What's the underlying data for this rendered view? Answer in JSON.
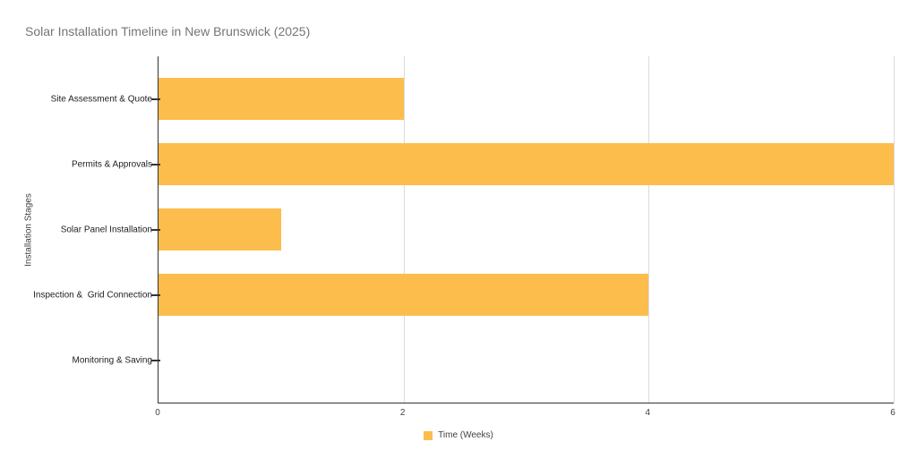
{
  "chart_data": {
    "type": "bar",
    "orientation": "horizontal",
    "title": "Solar Installation Timeline in New Brunswick (2025)",
    "xlabel": "",
    "ylabel": "Installation Stages",
    "categories": [
      "Site Assessment & Quote",
      "Permits & Approvals",
      "Solar Panel Installation",
      "Inspection &  Grid Connection",
      "Monitoring & Saving"
    ],
    "values": [
      2,
      6,
      1,
      4,
      0
    ],
    "series_name": "Time (Weeks)",
    "xlim": [
      0,
      6
    ],
    "xticks": [
      0,
      2,
      4,
      6
    ],
    "grid": "vertical-only",
    "legend": {
      "position": "bottom",
      "label": "Time (Weeks)"
    }
  },
  "colors": {
    "bar": "#FCBD4D",
    "grid": "#DBDBDB",
    "axis": "#333333",
    "background": "#FFFFFF",
    "title_text": "#757575",
    "category_text": "#212121",
    "tick_text": "#424242",
    "legend_text": "#424242"
  }
}
